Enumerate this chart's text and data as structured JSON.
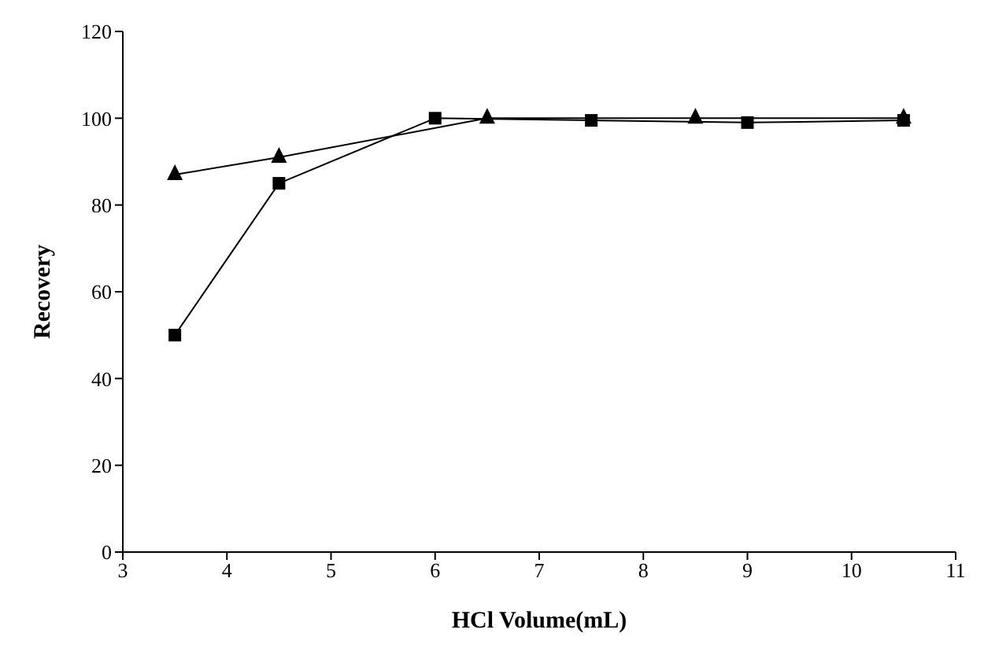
{
  "chart_data": {
    "type": "line",
    "xlabel": "HCl Volume(mL)",
    "ylabel": "Recovery",
    "xlim": [
      3,
      11
    ],
    "xticks": [
      3,
      4,
      5,
      6,
      7,
      8,
      9,
      10,
      11
    ],
    "ylim": [
      0,
      120
    ],
    "yticks": [
      0,
      20,
      40,
      60,
      80,
      100,
      120
    ],
    "grid": false,
    "legend": false,
    "line_style": "solid",
    "series": [
      {
        "color": "#000000",
        "marker": "triangle",
        "x": [
          3.5,
          4.5,
          6.5,
          8.5,
          10.5
        ],
        "values": [
          87,
          91,
          100,
          100,
          100
        ]
      },
      {
        "color": "#000000",
        "marker": "square",
        "x": [
          3.5,
          4.5,
          6,
          7.5,
          9,
          10.5
        ],
        "values": [
          50,
          85,
          100,
          99.5,
          99,
          99.5
        ]
      }
    ]
  }
}
